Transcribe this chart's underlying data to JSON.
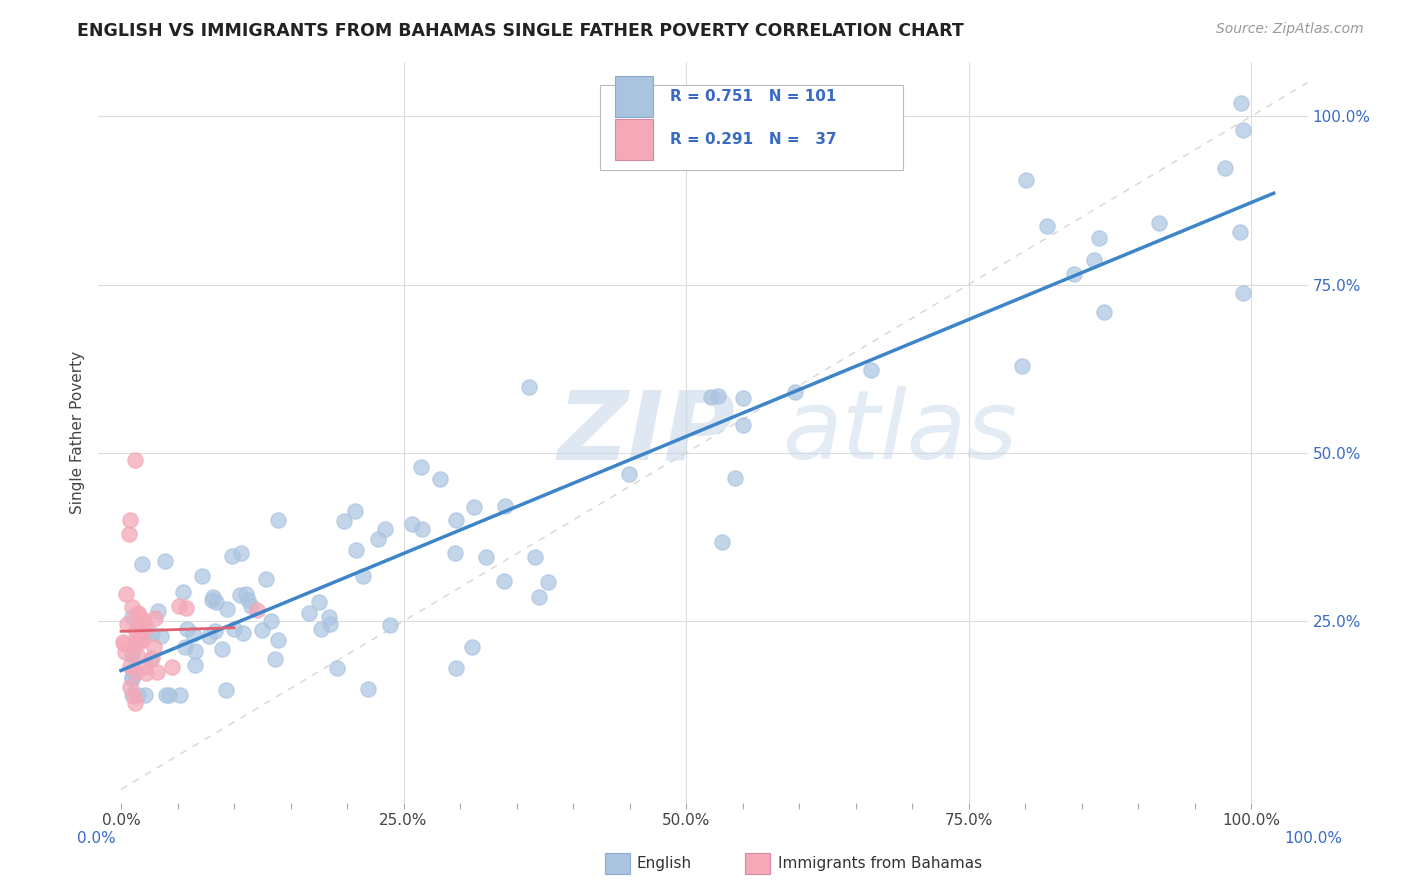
{
  "title": "ENGLISH VS IMMIGRANTS FROM BAHAMAS SINGLE FATHER POVERTY CORRELATION CHART",
  "source": "Source: ZipAtlas.com",
  "ylabel": "Single Father Poverty",
  "xlim": [
    -0.02,
    1.05
  ],
  "ylim": [
    -0.02,
    1.08
  ],
  "xtick_labels": [
    "0.0%",
    "",
    "",
    "",
    "",
    "25.0%",
    "",
    "",
    "",
    "",
    "50.0%",
    "",
    "",
    "",
    "",
    "75.0%",
    "",
    "",
    "",
    "",
    "100.0%"
  ],
  "xtick_positions": [
    0,
    0.05,
    0.1,
    0.15,
    0.2,
    0.25,
    0.3,
    0.35,
    0.4,
    0.45,
    0.5,
    0.55,
    0.6,
    0.65,
    0.7,
    0.75,
    0.8,
    0.85,
    0.9,
    0.95,
    1.0
  ],
  "ytick_labels": [
    "25.0%",
    "50.0%",
    "75.0%",
    "100.0%"
  ],
  "ytick_positions": [
    0.25,
    0.5,
    0.75,
    1.0
  ],
  "english_R": 0.751,
  "english_N": 101,
  "bahamas_R": 0.291,
  "bahamas_N": 37,
  "english_color": "#aac4e0",
  "bahamas_color": "#f4a8b8",
  "english_line_color": "#3d85c8",
  "bahamas_line_color": "#e06070",
  "legend_text_color": "#3a6bc4",
  "watermark_color": "#c8d8ea",
  "grid_color": "#dddddd",
  "diag_color": "#cccccc"
}
